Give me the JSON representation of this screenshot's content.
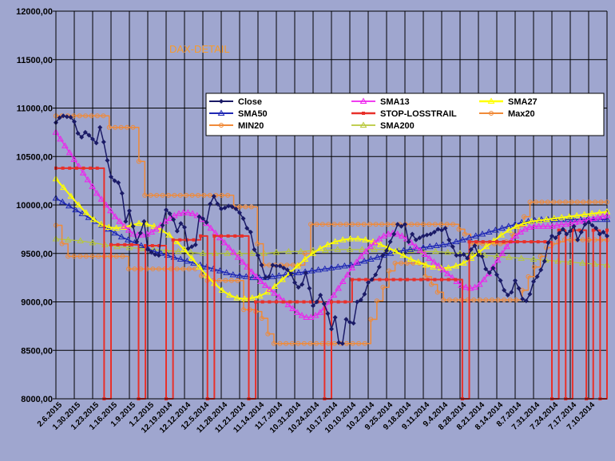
{
  "chart_data": {
    "type": "line",
    "title": "DAX-DETAIL",
    "xlabel": "",
    "ylabel": "",
    "ylim": [
      8000,
      12000
    ],
    "y_tick_step": 500,
    "y_tick_labels": [
      "8000,00",
      "8500,00",
      "9000,00",
      "9500,00",
      "10000,00",
      "10500,00",
      "11000,00",
      "11500,00",
      "12000,00"
    ],
    "x_tick_labels": [
      "2.6.2015",
      "1.30.2015",
      "1.23.2015",
      "1.16.2015",
      "1.9.2015",
      "1.2.2015",
      "12.19.2014",
      "12.12.2014",
      "12.5.2014",
      "11.28.2014",
      "11.21.2014",
      "11.14.2014",
      "11.7.2014",
      "10.31.2014",
      "10.24.2014",
      "10.17.2014",
      "10.10.2014",
      "10.2.2014",
      "9.25.2014",
      "9.18.2014",
      "9.11.2014",
      "9.4.2014",
      "8.28.2014",
      "8.21.2014",
      "8.14.2014",
      "8.7.2014",
      "7.31.2014",
      "7.24.2014",
      "7.17.2014",
      "7.10.2014"
    ],
    "x_order": "descending-dates-left-to-right",
    "legend_position": "top-right",
    "legend": [
      "Close",
      "SMA13",
      "SMA27",
      "SMA50",
      "STOP-LOSSTRAIL",
      "Max20",
      "MIN20",
      "SMA200"
    ],
    "colors": {
      "Close": "#1a1a66",
      "SMA13": "#ee22ee",
      "SMA27": "#ffff00",
      "SMA50": "#1f28b4",
      "STOP-LOSSTRAIL": "#e8302a",
      "Max20": "#f08a38",
      "MIN20": "#f08a38",
      "SMA200": "#b8c83a"
    },
    "series": [
      {
        "name": "Close",
        "values": [
          10850,
          10900,
          10920,
          10910,
          10905,
          10860,
          10740,
          10700,
          10750,
          10720,
          10680,
          10640,
          10800,
          10650,
          10460,
          10290,
          10250,
          10230,
          10120,
          9830,
          9940,
          9780,
          9620,
          9710,
          9830,
          9540,
          9510,
          9490,
          9480,
          9790,
          9950,
          9910,
          9850,
          9730,
          9810,
          9770,
          9550,
          9570,
          9590,
          9880,
          9860,
          9820,
          10010,
          10090,
          10010,
          9960,
          9970,
          9990,
          9980,
          9960,
          9920,
          9860,
          9760,
          9720,
          9540,
          9480,
          9380,
          9250,
          9260,
          9380,
          9370,
          9370,
          9350,
          9330,
          9290,
          9200,
          9150,
          9180,
          9300,
          9140,
          8960,
          9000,
          9070,
          8980,
          8880,
          8720,
          8840,
          8580,
          8570,
          8820,
          8790,
          8780,
          9000,
          9020,
          9080,
          9200,
          9230,
          9280,
          9360,
          9480,
          9530,
          9620,
          9700,
          9800,
          9780,
          9800,
          9620,
          9700,
          9640,
          9660,
          9680,
          9690,
          9700,
          9720,
          9750,
          9740,
          9760,
          9640,
          9570,
          9480,
          9480,
          9490,
          9450,
          9540,
          9580,
          9480,
          9470,
          9340,
          9300,
          9350,
          9280,
          9220,
          9120,
          9070,
          9100,
          9220,
          9140,
          9030,
          9010,
          9080,
          9210,
          9260,
          9330,
          9420,
          9610,
          9680,
          9660,
          9710,
          9750,
          9700,
          9730,
          9780,
          9640,
          9720,
          9800,
          9820,
          9790,
          9760,
          9700,
          9720,
          9680
        ]
      },
      {
        "name": "SMA13",
        "values": [
          10750,
          10680,
          10610,
          10540,
          10470,
          10400,
          10330,
          10260,
          10190,
          10120,
          10060,
          10000,
          9940,
          9880,
          9830,
          9780,
          9740,
          9700,
          9690,
          9690,
          9700,
          9720,
          9750,
          9790,
          9830,
          9860,
          9890,
          9910,
          9920,
          9920,
          9910,
          9890,
          9850,
          9810,
          9760,
          9710,
          9660,
          9610,
          9560,
          9510,
          9460,
          9410,
          9360,
          9310,
          9260,
          9210,
          9170,
          9130,
          9090,
          9050,
          9010,
          8970,
          8930,
          8890,
          8860,
          8840,
          8840,
          8860,
          8890,
          8940,
          9000,
          9070,
          9140,
          9210,
          9280,
          9350,
          9410,
          9470,
          9520,
          9570,
          9610,
          9650,
          9680,
          9700,
          9710,
          9700,
          9680,
          9650,
          9610,
          9570,
          9530,
          9490,
          9450,
          9410,
          9370,
          9330,
          9290,
          9250,
          9210,
          9170,
          9150,
          9140,
          9150,
          9180,
          9230,
          9290,
          9360,
          9430,
          9500,
          9570,
          9630,
          9680,
          9720,
          9750,
          9770,
          9780,
          9780,
          9780,
          9780,
          9780,
          9790,
          9800,
          9800,
          9810,
          9820,
          9830,
          9840,
          9850,
          9860,
          9870,
          9880,
          9890
        ]
      },
      {
        "name": "SMA27",
        "values": [
          10270,
          10180,
          10090,
          10000,
          9920,
          9850,
          9800,
          9770,
          9760,
          9770,
          9790,
          9810,
          9800,
          9780,
          9740,
          9690,
          9620,
          9540,
          9450,
          9360,
          9270,
          9190,
          9120,
          9070,
          9040,
          9030,
          9040,
          9060,
          9100,
          9160,
          9230,
          9300,
          9370,
          9440,
          9500,
          9550,
          9590,
          9620,
          9640,
          9650,
          9650,
          9640,
          9620,
          9590,
          9560,
          9520,
          9480,
          9440,
          9410,
          9380,
          9360,
          9350,
          9350,
          9370,
          9400,
          9450,
          9510,
          9570,
          9630,
          9690,
          9740,
          9780,
          9810,
          9830,
          9840,
          9850,
          9860,
          9870,
          9880,
          9890,
          9900,
          9910,
          9920,
          9930
        ]
      },
      {
        "name": "SMA50",
        "values": [
          10070,
          10030,
          9990,
          9950,
          9910,
          9870,
          9830,
          9790,
          9750,
          9710,
          9670,
          9640,
          9610,
          9580,
          9550,
          9520,
          9500,
          9480,
          9460,
          9440,
          9420,
          9400,
          9380,
          9360,
          9340,
          9320,
          9300,
          9280,
          9270,
          9260,
          9250,
          9250,
          9250,
          9260,
          9270,
          9280,
          9290,
          9300,
          9310,
          9320,
          9330,
          9340,
          9350,
          9360,
          9370,
          9380,
          9400,
          9420,
          9440,
          9460,
          9480,
          9500,
          9520,
          9530,
          9540,
          9550,
          9560,
          9570,
          9580,
          9590,
          9600,
          9620,
          9640,
          9660,
          9680,
          9700,
          9720,
          9740,
          9760,
          9780,
          9800,
          9820,
          9830,
          9840,
          9850,
          9850,
          9850,
          9850,
          9850,
          9850,
          9850,
          9850,
          9850,
          9850,
          9850
        ]
      },
      {
        "name": "SMA200",
        "values": [
          9650,
          9640,
          9630,
          9610,
          9590,
          9570,
          9560,
          9550,
          9540,
          9530,
          9520,
          9510,
          9500,
          9500,
          9500,
          9500,
          9500,
          9500,
          9510,
          9520,
          9520,
          9530,
          9530,
          9540,
          9540,
          9540,
          9540,
          9540,
          9530,
          9530,
          9520,
          9520,
          9510,
          9500,
          9490,
          9480,
          9470,
          9460,
          9450,
          9440,
          9430,
          9420,
          9410,
          9400,
          9390,
          9380
        ]
      },
      {
        "name": "STOP-LOSSTRAIL",
        "values": [
          10380,
          10380,
          10380,
          10380,
          10380,
          10380,
          10380,
          8000,
          9590,
          9590,
          9590,
          9590,
          8000,
          9580,
          9580,
          9580,
          8000,
          9640,
          9640,
          9640,
          9640,
          9680,
          8000,
          9680,
          9680,
          9680,
          9680,
          9680,
          8000,
          9000,
          9000,
          9000,
          9000,
          9000,
          9000,
          9000,
          9000,
          9000,
          9000,
          8000,
          9000,
          9000,
          9000,
          9230,
          9230,
          9230,
          9230,
          9230,
          9230,
          9230,
          9230,
          9230,
          9230,
          9230,
          9230,
          9230,
          9230,
          9230,
          9230,
          8000,
          9620,
          9620,
          9620,
          9620,
          9620,
          9620,
          9620,
          9620,
          9620,
          9620,
          9620,
          9620,
          8000,
          9740,
          8000,
          9740,
          9740,
          8000,
          9740,
          8000,
          9740
        ]
      },
      {
        "name": "Max20",
        "values": [
          10920,
          10920,
          10920,
          10920,
          10920,
          10920,
          10920,
          10920,
          10920,
          10800,
          10800,
          10800,
          10800,
          10800,
          10450,
          10100,
          10100,
          10100,
          10100,
          10100,
          10100,
          10100,
          10100,
          10100,
          10100,
          10100,
          10100,
          10100,
          10100,
          10100,
          9980,
          9980,
          9980,
          9980,
          9600,
          9380,
          9380,
          9380,
          9380,
          9380,
          9380,
          9380,
          9500,
          9800,
          9800,
          9800,
          9800,
          9800,
          9800,
          9800,
          9800,
          9800,
          9800,
          9800,
          9800,
          9800,
          9800,
          9800,
          9800,
          9800,
          9800,
          9800,
          9800,
          9800,
          9800,
          9800,
          9800,
          9800,
          9750,
          9700,
          9600,
          9600,
          9600,
          9600,
          9600,
          9600,
          9620,
          9700,
          9780,
          9880,
          10030,
          10030,
          10030,
          10030,
          10030,
          10030,
          10030,
          10030,
          10030,
          10030,
          10030,
          10030,
          10030,
          10030
        ]
      },
      {
        "name": "MIN20",
        "values": [
          9790,
          9600,
          9470,
          9470,
          9470,
          9470,
          9470,
          9470,
          9470,
          9470,
          9470,
          9470,
          9340,
          9340,
          9340,
          9340,
          9340,
          9340,
          9340,
          9340,
          9340,
          9340,
          9340,
          9340,
          9270,
          9220,
          9220,
          9220,
          9220,
          9220,
          9220,
          8920,
          8920,
          8900,
          8830,
          8670,
          8570,
          8570,
          8570,
          8570,
          8570,
          8570,
          8570,
          8570,
          8570,
          8570,
          8570,
          8570,
          8570,
          8570,
          8570,
          8570,
          8820,
          9010,
          9150,
          9320,
          9400,
          9400,
          9400,
          9400,
          9400,
          9260,
          9180,
          9100,
          9020,
          9020,
          9020,
          9020,
          9020,
          9020,
          9020,
          9020,
          9020,
          9020,
          9020,
          9020,
          9020,
          9120,
          9260,
          9360,
          9470,
          9560,
          9600,
          9620,
          9640,
          9640,
          9640,
          9640,
          9640,
          9640,
          9640,
          9640
        ]
      }
    ]
  }
}
